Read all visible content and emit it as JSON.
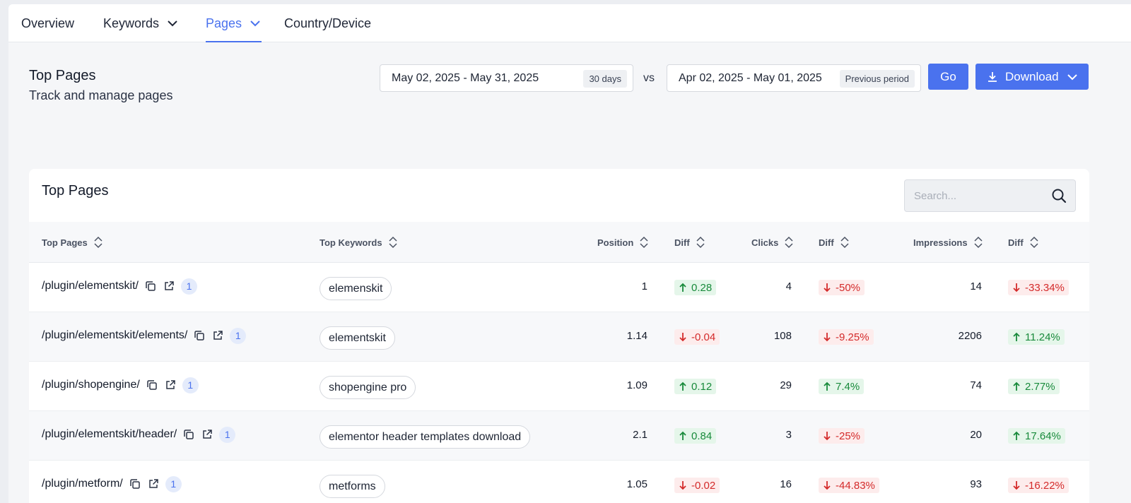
{
  "nav": {
    "tabs": [
      {
        "label": "Overview",
        "has_dropdown": false,
        "active": false
      },
      {
        "label": "Keywords",
        "has_dropdown": true,
        "active": false
      },
      {
        "label": "Pages",
        "has_dropdown": true,
        "active": true
      },
      {
        "label": "Country/Device",
        "has_dropdown": false,
        "active": false
      }
    ]
  },
  "header": {
    "title": "Top Pages",
    "subtitle": "Track and manage pages"
  },
  "date_range": {
    "current": "May 02, 2025 - May 31, 2025",
    "current_tag": "30 days",
    "vs_label": "vs",
    "previous": "Apr 02, 2025 - May 01, 2025",
    "previous_tag": "Previous period"
  },
  "actions": {
    "go_label": "Go",
    "download_label": "Download"
  },
  "table": {
    "title": "Top Pages",
    "search_placeholder": "Search...",
    "columns": [
      "Top Pages",
      "Top Keywords",
      "Position",
      "Diff",
      "Clicks",
      "Diff",
      "Impressions",
      "Diff"
    ],
    "rows": [
      {
        "page": "/plugin/elementskit/",
        "count": "1",
        "keyword": "elemenskit",
        "position": "1",
        "position_diff": "0.28",
        "position_dir": "up",
        "clicks": "4",
        "clicks_diff": "-50%",
        "clicks_dir": "down",
        "impressions": "14",
        "impressions_diff": "-33.34%",
        "impressions_dir": "down"
      },
      {
        "page": "/plugin/elementskit/elements/",
        "count": "1",
        "keyword": "elementskit",
        "position": "1.14",
        "position_diff": "-0.04",
        "position_dir": "down",
        "clicks": "108",
        "clicks_diff": "-9.25%",
        "clicks_dir": "down",
        "impressions": "2206",
        "impressions_diff": "11.24%",
        "impressions_dir": "up"
      },
      {
        "page": "/plugin/shopengine/",
        "count": "1",
        "keyword": "shopengine pro",
        "position": "1.09",
        "position_diff": "0.12",
        "position_dir": "up",
        "clicks": "29",
        "clicks_diff": "7.4%",
        "clicks_dir": "up",
        "impressions": "74",
        "impressions_diff": "2.77%",
        "impressions_dir": "up"
      },
      {
        "page": "/plugin/elementskit/header/",
        "count": "1",
        "keyword": "elementor header templates download",
        "position": "2.1",
        "position_diff": "0.84",
        "position_dir": "up",
        "clicks": "3",
        "clicks_diff": "-25%",
        "clicks_dir": "down",
        "impressions": "20",
        "impressions_diff": "17.64%",
        "impressions_dir": "up"
      },
      {
        "page": "/plugin/metform/",
        "count": "1",
        "keyword": "metforms",
        "position": "1.05",
        "position_diff": "-0.02",
        "position_dir": "down",
        "clicks": "16",
        "clicks_diff": "-44.83%",
        "clicks_dir": "down",
        "impressions": "93",
        "impressions_diff": "-16.22%",
        "impressions_dir": "down"
      }
    ]
  },
  "colors": {
    "accent": "#4a72ee",
    "up": "#188a3b",
    "down": "#d42a2a"
  }
}
